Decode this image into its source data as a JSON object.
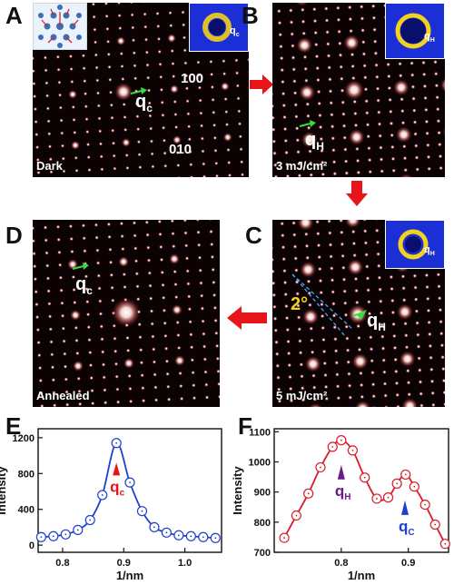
{
  "panels": {
    "A": {
      "letter": "A",
      "corner_label": "Dark",
      "q_main": "q",
      "q_sub": "c",
      "miller_1": "100",
      "miller_2": "010",
      "inset_q": "q",
      "inset_q_sub": "c"
    },
    "B": {
      "letter": "B",
      "corner_label": "3 mJ/cm²",
      "q_main": "q",
      "q_sub": "H",
      "inset_q": "q",
      "inset_q_sub": "H"
    },
    "C": {
      "letter": "C",
      "corner_label": "5 mJ/cm²",
      "q_main": "q",
      "q_sub": "H",
      "angle": "2°",
      "inset_q": "q",
      "inset_q_sub": "H"
    },
    "D": {
      "letter": "D",
      "corner_label": "Annealed",
      "q_main": "q",
      "q_sub": "c"
    },
    "E": {
      "letter": "E"
    },
    "F": {
      "letter": "F"
    }
  },
  "colors": {
    "arrow": "#e8141c",
    "green_arrow": "#3ddc3d",
    "plotE": "#1f3fd0",
    "plotF": "#d81e2a",
    "qH_marker": "#6a1a8a"
  },
  "chart_data": [
    {
      "type": "line",
      "panel": "E",
      "xlabel": "1/nm",
      "ylabel": "Intensity",
      "xlim": [
        0.76,
        1.06
      ],
      "ylim": [
        -80,
        1300
      ],
      "xticks": [
        "0.8",
        "0.9",
        "1.0"
      ],
      "yticks": [
        "0",
        "400",
        "800",
        "1200"
      ],
      "annotation": {
        "text": "q",
        "sub": "c",
        "x": 0.888
      },
      "x": [
        0.765,
        0.785,
        0.805,
        0.825,
        0.845,
        0.865,
        0.888,
        0.91,
        0.93,
        0.95,
        0.97,
        0.99,
        1.01,
        1.03,
        1.05
      ],
      "values": [
        90,
        100,
        120,
        170,
        280,
        560,
        1140,
        700,
        380,
        200,
        140,
        110,
        100,
        90,
        80
      ]
    },
    {
      "type": "line",
      "panel": "F",
      "xlabel": "1/nm",
      "ylabel": "Intensity",
      "xlim": [
        0.7,
        0.96
      ],
      "ylim": [
        700,
        1110
      ],
      "xticks": [
        "0.8",
        "0.9"
      ],
      "yticks": [
        "700",
        "800",
        "900",
        "1000",
        "1100"
      ],
      "annotations": [
        {
          "text": "q",
          "sub": "H",
          "x": 0.8
        },
        {
          "text": "q",
          "sub": "C",
          "x": 0.895
        }
      ],
      "x": [
        0.715,
        0.733,
        0.751,
        0.769,
        0.787,
        0.8,
        0.817,
        0.835,
        0.853,
        0.87,
        0.883,
        0.896,
        0.909,
        0.925,
        0.94,
        0.955
      ],
      "values": [
        748,
        822,
        895,
        982,
        1050,
        1072,
        1038,
        948,
        878,
        882,
        928,
        958,
        918,
        858,
        792,
        728
      ]
    }
  ]
}
